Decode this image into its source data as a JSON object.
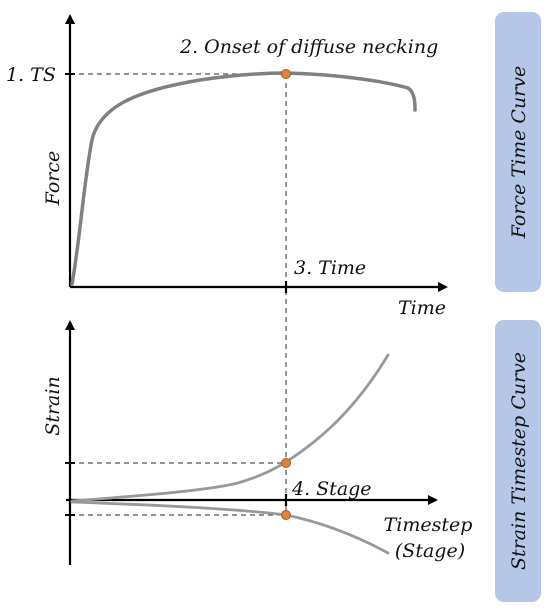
{
  "top_chart": {
    "y_axis_label": "Force",
    "x_axis_label": "Time",
    "ts_label": "1. TS",
    "necking_label": "2. Onset of diffuse necking",
    "time_label": "3. Time"
  },
  "bottom_chart": {
    "y_axis_label": "Strain",
    "x_axis_label_line1": "Timestep",
    "x_axis_label_line2": "(Stage)",
    "stage_label": "4. Stage"
  },
  "side_panels": {
    "top": "Force Time Curve",
    "bottom": "Strain Timestep Curve"
  },
  "colors": {
    "curve": "#808080",
    "marker_fill": "#e0823c",
    "marker_stroke": "#a85a22",
    "panel_fill": "#b4c7e7",
    "axis": "#000000",
    "guide": "#555555"
  }
}
